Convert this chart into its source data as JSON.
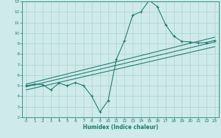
{
  "xlabel": "Humidex (Indice chaleur)",
  "bg_color": "#ceeaea",
  "grid_color": "#aed0d0",
  "line_color": "#1a7a6e",
  "xlim": [
    -0.5,
    23.5
  ],
  "ylim": [
    2,
    13
  ],
  "xticks": [
    0,
    1,
    2,
    3,
    4,
    5,
    6,
    7,
    8,
    9,
    10,
    11,
    12,
    13,
    14,
    15,
    16,
    17,
    18,
    19,
    20,
    21,
    22,
    23
  ],
  "yticks": [
    2,
    3,
    4,
    5,
    6,
    7,
    8,
    9,
    10,
    11,
    12,
    13
  ],
  "curve1_x": [
    0,
    1,
    2,
    3,
    4,
    5,
    6,
    7,
    8,
    9,
    10,
    11,
    12,
    13,
    14,
    15,
    16,
    17,
    18,
    19,
    20,
    21,
    22,
    23
  ],
  "curve1_y": [
    5.0,
    5.15,
    5.1,
    4.6,
    5.25,
    5.0,
    5.3,
    5.0,
    4.0,
    2.5,
    3.6,
    7.5,
    9.3,
    11.7,
    12.0,
    13.1,
    12.5,
    10.8,
    9.7,
    9.2,
    9.15,
    9.05,
    9.1,
    9.3
  ],
  "line2_x": [
    0,
    23
  ],
  "line2_y": [
    5.15,
    9.6
  ],
  "line3_x": [
    0,
    23
  ],
  "line3_y": [
    4.9,
    9.15
  ],
  "line4_x": [
    0,
    23
  ],
  "line4_y": [
    4.6,
    8.7
  ]
}
